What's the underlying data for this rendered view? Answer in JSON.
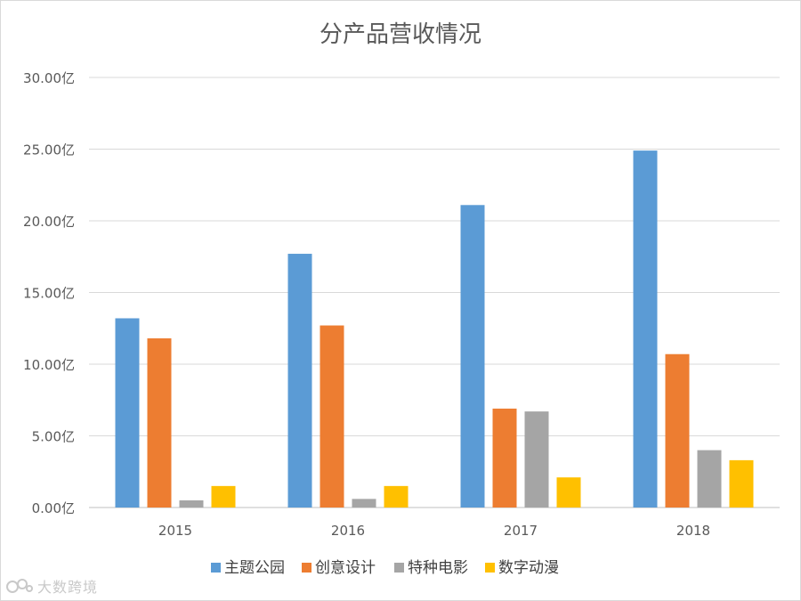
{
  "chart_data": {
    "type": "bar",
    "title": "分产品营收情况",
    "categories": [
      "2015",
      "2016",
      "2017",
      "2018"
    ],
    "series": [
      {
        "name": "主题公园",
        "color": "#5b9bd5",
        "values": [
          13.2,
          17.7,
          21.1,
          24.9
        ]
      },
      {
        "name": "创意设计",
        "color": "#ed7d31",
        "values": [
          11.8,
          12.7,
          6.9,
          10.7
        ]
      },
      {
        "name": "特种电影",
        "color": "#a5a5a5",
        "values": [
          0.5,
          0.6,
          6.7,
          4.0
        ]
      },
      {
        "name": "数字动漫",
        "color": "#ffc000",
        "values": [
          1.5,
          1.5,
          2.1,
          3.3
        ]
      }
    ],
    "ylim": [
      0,
      30
    ],
    "yticks": [
      0,
      5,
      10,
      15,
      20,
      25,
      30
    ],
    "ytick_labels": [
      "0.00亿",
      "5.00亿",
      "10.00亿",
      "15.00亿",
      "20.00亿",
      "25.00亿",
      "30.00亿"
    ],
    "xlabel": "",
    "ylabel": "",
    "grid": true,
    "legend_position": "bottom"
  },
  "watermark": {
    "text": "大数跨境"
  }
}
